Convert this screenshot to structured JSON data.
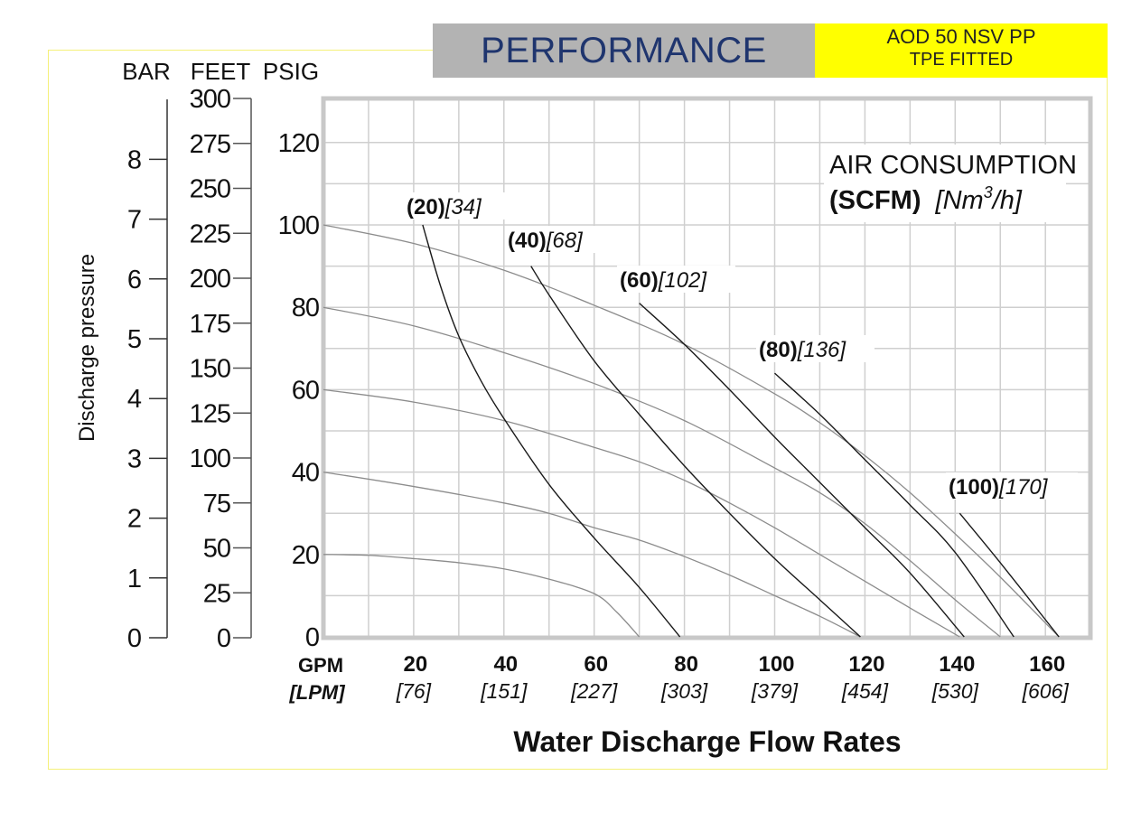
{
  "header": {
    "title": "PERFORMANCE",
    "model_line1": "AOD 50 NSV PP",
    "model_line2": "TPE FITTED",
    "title_bg": "#b3b3b3",
    "title_color": "#1f356e",
    "model_bg": "#ffff00"
  },
  "chart_data": {
    "type": "line",
    "title": "PERFORMANCE",
    "xlabel": "Water Discharge Flow Rates",
    "x_unit_primary": "GPM",
    "x_unit_secondary": "[LPM]",
    "xlim": [
      0,
      170
    ],
    "x_ticks": [
      {
        "gpm": "20",
        "lpm": "[76]"
      },
      {
        "gpm": "40",
        "lpm": "[151]"
      },
      {
        "gpm": "60",
        "lpm": "[227]"
      },
      {
        "gpm": "80",
        "lpm": "[303]"
      },
      {
        "gpm": "100",
        "lpm": "[379]"
      },
      {
        "gpm": "120",
        "lpm": "[454]"
      },
      {
        "gpm": "140",
        "lpm": "[530]"
      },
      {
        "gpm": "160",
        "lpm": "[606]"
      }
    ],
    "ylabel": "Discharge pressure",
    "y_units": [
      "BAR",
      "FEET",
      "PSIG"
    ],
    "ylim_psig": [
      0,
      130
    ],
    "psig_ticks": [
      "0",
      "20",
      "40",
      "60",
      "80",
      "100",
      "120"
    ],
    "feet_ticks": [
      "0",
      "25",
      "50",
      "75",
      "100",
      "125",
      "150",
      "175",
      "200",
      "225",
      "250",
      "275",
      "300"
    ],
    "bar_ticks": [
      "0",
      "1",
      "2",
      "3",
      "4",
      "5",
      "6",
      "7",
      "8"
    ],
    "grid": true,
    "legend_title_line1": "AIR CONSUMPTION",
    "legend_title_bold": "(SCFM)",
    "legend_title_italic_pre": "[Nm",
    "legend_title_sup": "3",
    "legend_title_italic_post": "/h]",
    "legend_placement": "top-right",
    "pressure_curves": [
      {
        "name": "20 PSIG inlet",
        "points": [
          [
            0,
            20
          ],
          [
            10,
            19.8
          ],
          [
            20,
            19
          ],
          [
            30,
            18
          ],
          [
            40,
            16.5
          ],
          [
            50,
            14
          ],
          [
            60,
            10.5
          ],
          [
            65,
            6
          ],
          [
            70,
            0
          ]
        ]
      },
      {
        "name": "40 PSIG inlet",
        "points": [
          [
            0,
            40
          ],
          [
            20,
            36.5
          ],
          [
            40,
            32.5
          ],
          [
            50,
            30
          ],
          [
            60,
            26.5
          ],
          [
            70,
            23.5
          ],
          [
            80,
            19.5
          ],
          [
            90,
            15
          ],
          [
            100,
            10
          ],
          [
            110,
            5
          ],
          [
            119,
            0
          ]
        ]
      },
      {
        "name": "60 PSIG inlet",
        "points": [
          [
            0,
            60
          ],
          [
            20,
            57
          ],
          [
            40,
            52.5
          ],
          [
            60,
            46
          ],
          [
            70,
            42.5
          ],
          [
            80,
            38
          ],
          [
            90,
            32.5
          ],
          [
            100,
            26.5
          ],
          [
            110,
            20
          ],
          [
            120,
            13.5
          ],
          [
            130,
            7
          ],
          [
            141,
            0
          ]
        ]
      },
      {
        "name": "80 PSIG inlet",
        "points": [
          [
            0,
            80
          ],
          [
            20,
            75.5
          ],
          [
            40,
            69
          ],
          [
            60,
            61.5
          ],
          [
            80,
            52.5
          ],
          [
            100,
            41
          ],
          [
            110,
            35
          ],
          [
            120,
            27.5
          ],
          [
            130,
            18.5
          ],
          [
            140,
            9
          ],
          [
            150,
            0
          ]
        ]
      },
      {
        "name": "100 PSIG inlet",
        "points": [
          [
            0,
            100
          ],
          [
            20,
            95.5
          ],
          [
            40,
            89
          ],
          [
            60,
            80.5
          ],
          [
            80,
            71
          ],
          [
            100,
            59
          ],
          [
            110,
            52
          ],
          [
            120,
            44
          ],
          [
            130,
            35
          ],
          [
            140,
            25
          ],
          [
            150,
            14.5
          ],
          [
            163,
            0
          ]
        ]
      }
    ],
    "air_consumption_curves": [
      {
        "scfm": "(20)",
        "nm3h": "[34]",
        "points": [
          [
            22,
            100
          ],
          [
            26,
            85
          ],
          [
            30,
            73
          ],
          [
            35,
            62
          ],
          [
            40,
            53
          ],
          [
            50,
            37
          ],
          [
            60,
            24
          ],
          [
            70,
            12
          ],
          [
            79,
            0
          ]
        ]
      },
      {
        "scfm": "(40)",
        "nm3h": "[68]",
        "points": [
          [
            46,
            90
          ],
          [
            50,
            83
          ],
          [
            60,
            67
          ],
          [
            70,
            54
          ],
          [
            80,
            41.5
          ],
          [
            90,
            30
          ],
          [
            100,
            19
          ],
          [
            110,
            9
          ],
          [
            119,
            0
          ]
        ]
      },
      {
        "scfm": "(60)",
        "nm3h": "[102]",
        "points": [
          [
            70,
            81
          ],
          [
            80,
            71
          ],
          [
            90,
            60
          ],
          [
            100,
            48.5
          ],
          [
            110,
            37.5
          ],
          [
            120,
            26.5
          ],
          [
            130,
            15.5
          ],
          [
            142,
            0
          ]
        ]
      },
      {
        "scfm": "(80)",
        "nm3h": "[136]",
        "points": [
          [
            100,
            64
          ],
          [
            110,
            54
          ],
          [
            120,
            43
          ],
          [
            130,
            32
          ],
          [
            140,
            20.5
          ],
          [
            153,
            0
          ]
        ]
      },
      {
        "scfm": "(100)",
        "nm3h": "[170]",
        "points": [
          [
            141,
            30
          ],
          [
            150,
            18
          ],
          [
            163,
            0
          ]
        ]
      }
    ],
    "colors": {
      "pressure_curve": "#8c8c8c",
      "air_curve": "#1a1a1a",
      "grid": "#cfcfcf",
      "frame": "#c8c8c8"
    }
  }
}
